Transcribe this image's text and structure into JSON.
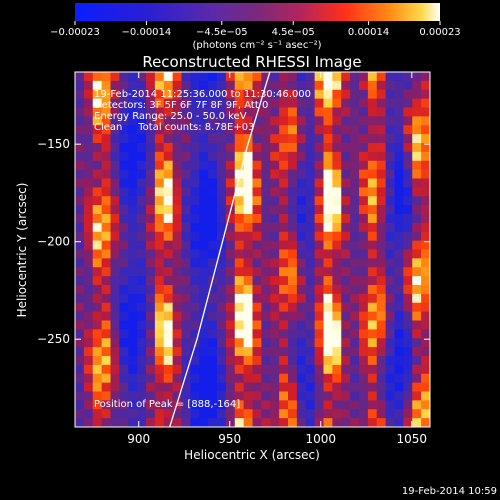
{
  "chart_data": {
    "type": "heatmap",
    "title": "Reconstructed RHESSI Image",
    "xlabel": "Heliocentric X (arcsec)",
    "ylabel": "Heliocentric Y (arcsec)",
    "xlim": [
      865,
      1060
    ],
    "ylim": [
      -295,
      -113
    ],
    "x_ticks": [
      900,
      950,
      1000,
      1050
    ],
    "x_tick_labels": [
      "900",
      "950",
      "1000",
      "1050"
    ],
    "y_ticks": [
      -150,
      -200,
      -250
    ],
    "y_tick_labels": [
      "−150",
      "−200",
      "−250"
    ],
    "colorbar": {
      "min": -0.00023,
      "max": 0.00023,
      "ticks": [
        -0.00023,
        -0.00014,
        -4.5e-05,
        4.5e-05,
        0.00014,
        0.00023
      ],
      "tick_labels": [
        "−0.00023",
        "−0.00014",
        "−4.5e−05",
        "4.5e−05",
        "0.00014",
        "0.00023"
      ],
      "unit_label": "(photons cm⁻² s⁻¹ asec⁻²)"
    },
    "annotations": [
      "19-Feb-2014 11:25:36.000 to 11:30:46.000",
      "Detectors: 3F 5F 6F 7F 8F 9F, Att 0",
      "Energy Range: 25.0 - 50.0 keV",
      "Clean     Total counts: 8.78E+03"
    ],
    "peak_label": "Position of Peak = [888,-164]",
    "peak": [
      888,
      -164
    ],
    "limb_curve": [
      [
        917,
        -295
      ],
      [
        932,
        -250
      ],
      [
        946,
        -200
      ],
      [
        960,
        -150
      ],
      [
        972,
        -113
      ]
    ]
  },
  "footer_timestamp": "19-Feb-2014 10:59"
}
